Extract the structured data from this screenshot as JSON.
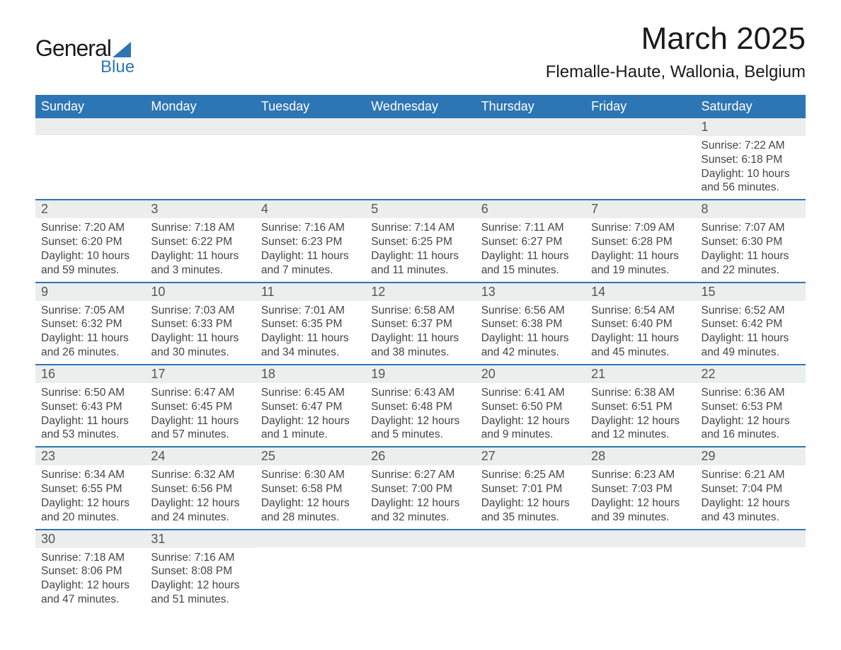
{
  "logo": {
    "text_general": "General",
    "text_blue": "Blue"
  },
  "title": "March 2025",
  "subtitle": "Flemalle-Haute, Wallonia, Belgium",
  "colors": {
    "header_bg": "#2d76b5",
    "band_bg": "#eceded",
    "row_border": "#2d76b5",
    "text": "#444444"
  },
  "weekday_headers": [
    "Sunday",
    "Monday",
    "Tuesday",
    "Wednesday",
    "Thursday",
    "Friday",
    "Saturday"
  ],
  "weeks": [
    [
      null,
      null,
      null,
      null,
      null,
      null,
      {
        "n": "1",
        "sunrise": "Sunrise: 7:22 AM",
        "sunset": "Sunset: 6:18 PM",
        "day1": "Daylight: 10 hours",
        "day2": "and 56 minutes."
      }
    ],
    [
      {
        "n": "2",
        "sunrise": "Sunrise: 7:20 AM",
        "sunset": "Sunset: 6:20 PM",
        "day1": "Daylight: 10 hours",
        "day2": "and 59 minutes."
      },
      {
        "n": "3",
        "sunrise": "Sunrise: 7:18 AM",
        "sunset": "Sunset: 6:22 PM",
        "day1": "Daylight: 11 hours",
        "day2": "and 3 minutes."
      },
      {
        "n": "4",
        "sunrise": "Sunrise: 7:16 AM",
        "sunset": "Sunset: 6:23 PM",
        "day1": "Daylight: 11 hours",
        "day2": "and 7 minutes."
      },
      {
        "n": "5",
        "sunrise": "Sunrise: 7:14 AM",
        "sunset": "Sunset: 6:25 PM",
        "day1": "Daylight: 11 hours",
        "day2": "and 11 minutes."
      },
      {
        "n": "6",
        "sunrise": "Sunrise: 7:11 AM",
        "sunset": "Sunset: 6:27 PM",
        "day1": "Daylight: 11 hours",
        "day2": "and 15 minutes."
      },
      {
        "n": "7",
        "sunrise": "Sunrise: 7:09 AM",
        "sunset": "Sunset: 6:28 PM",
        "day1": "Daylight: 11 hours",
        "day2": "and 19 minutes."
      },
      {
        "n": "8",
        "sunrise": "Sunrise: 7:07 AM",
        "sunset": "Sunset: 6:30 PM",
        "day1": "Daylight: 11 hours",
        "day2": "and 22 minutes."
      }
    ],
    [
      {
        "n": "9",
        "sunrise": "Sunrise: 7:05 AM",
        "sunset": "Sunset: 6:32 PM",
        "day1": "Daylight: 11 hours",
        "day2": "and 26 minutes."
      },
      {
        "n": "10",
        "sunrise": "Sunrise: 7:03 AM",
        "sunset": "Sunset: 6:33 PM",
        "day1": "Daylight: 11 hours",
        "day2": "and 30 minutes."
      },
      {
        "n": "11",
        "sunrise": "Sunrise: 7:01 AM",
        "sunset": "Sunset: 6:35 PM",
        "day1": "Daylight: 11 hours",
        "day2": "and 34 minutes."
      },
      {
        "n": "12",
        "sunrise": "Sunrise: 6:58 AM",
        "sunset": "Sunset: 6:37 PM",
        "day1": "Daylight: 11 hours",
        "day2": "and 38 minutes."
      },
      {
        "n": "13",
        "sunrise": "Sunrise: 6:56 AM",
        "sunset": "Sunset: 6:38 PM",
        "day1": "Daylight: 11 hours",
        "day2": "and 42 minutes."
      },
      {
        "n": "14",
        "sunrise": "Sunrise: 6:54 AM",
        "sunset": "Sunset: 6:40 PM",
        "day1": "Daylight: 11 hours",
        "day2": "and 45 minutes."
      },
      {
        "n": "15",
        "sunrise": "Sunrise: 6:52 AM",
        "sunset": "Sunset: 6:42 PM",
        "day1": "Daylight: 11 hours",
        "day2": "and 49 minutes."
      }
    ],
    [
      {
        "n": "16",
        "sunrise": "Sunrise: 6:50 AM",
        "sunset": "Sunset: 6:43 PM",
        "day1": "Daylight: 11 hours",
        "day2": "and 53 minutes."
      },
      {
        "n": "17",
        "sunrise": "Sunrise: 6:47 AM",
        "sunset": "Sunset: 6:45 PM",
        "day1": "Daylight: 11 hours",
        "day2": "and 57 minutes."
      },
      {
        "n": "18",
        "sunrise": "Sunrise: 6:45 AM",
        "sunset": "Sunset: 6:47 PM",
        "day1": "Daylight: 12 hours",
        "day2": "and 1 minute."
      },
      {
        "n": "19",
        "sunrise": "Sunrise: 6:43 AM",
        "sunset": "Sunset: 6:48 PM",
        "day1": "Daylight: 12 hours",
        "day2": "and 5 minutes."
      },
      {
        "n": "20",
        "sunrise": "Sunrise: 6:41 AM",
        "sunset": "Sunset: 6:50 PM",
        "day1": "Daylight: 12 hours",
        "day2": "and 9 minutes."
      },
      {
        "n": "21",
        "sunrise": "Sunrise: 6:38 AM",
        "sunset": "Sunset: 6:51 PM",
        "day1": "Daylight: 12 hours",
        "day2": "and 12 minutes."
      },
      {
        "n": "22",
        "sunrise": "Sunrise: 6:36 AM",
        "sunset": "Sunset: 6:53 PM",
        "day1": "Daylight: 12 hours",
        "day2": "and 16 minutes."
      }
    ],
    [
      {
        "n": "23",
        "sunrise": "Sunrise: 6:34 AM",
        "sunset": "Sunset: 6:55 PM",
        "day1": "Daylight: 12 hours",
        "day2": "and 20 minutes."
      },
      {
        "n": "24",
        "sunrise": "Sunrise: 6:32 AM",
        "sunset": "Sunset: 6:56 PM",
        "day1": "Daylight: 12 hours",
        "day2": "and 24 minutes."
      },
      {
        "n": "25",
        "sunrise": "Sunrise: 6:30 AM",
        "sunset": "Sunset: 6:58 PM",
        "day1": "Daylight: 12 hours",
        "day2": "and 28 minutes."
      },
      {
        "n": "26",
        "sunrise": "Sunrise: 6:27 AM",
        "sunset": "Sunset: 7:00 PM",
        "day1": "Daylight: 12 hours",
        "day2": "and 32 minutes."
      },
      {
        "n": "27",
        "sunrise": "Sunrise: 6:25 AM",
        "sunset": "Sunset: 7:01 PM",
        "day1": "Daylight: 12 hours",
        "day2": "and 35 minutes."
      },
      {
        "n": "28",
        "sunrise": "Sunrise: 6:23 AM",
        "sunset": "Sunset: 7:03 PM",
        "day1": "Daylight: 12 hours",
        "day2": "and 39 minutes."
      },
      {
        "n": "29",
        "sunrise": "Sunrise: 6:21 AM",
        "sunset": "Sunset: 7:04 PM",
        "day1": "Daylight: 12 hours",
        "day2": "and 43 minutes."
      }
    ],
    [
      {
        "n": "30",
        "sunrise": "Sunrise: 7:18 AM",
        "sunset": "Sunset: 8:06 PM",
        "day1": "Daylight: 12 hours",
        "day2": "and 47 minutes."
      },
      {
        "n": "31",
        "sunrise": "Sunrise: 7:16 AM",
        "sunset": "Sunset: 8:08 PM",
        "day1": "Daylight: 12 hours",
        "day2": "and 51 minutes."
      },
      null,
      null,
      null,
      null,
      null
    ]
  ]
}
